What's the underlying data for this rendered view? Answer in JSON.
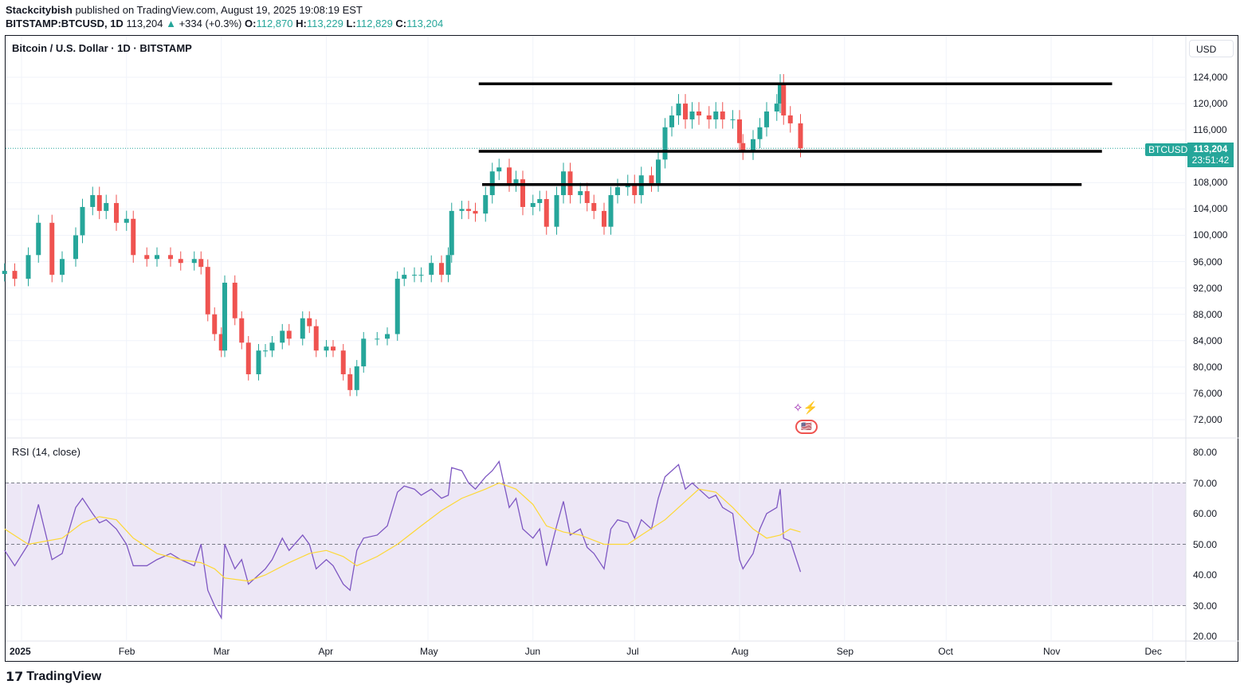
{
  "header": {
    "author": "Stackcitybish",
    "published": "published on TradingView.com, August 19, 2025 19:08:19 EST",
    "symbol": "BITSTAMP:BTCUSD, 1D",
    "last": "113,204",
    "change": "+334 (+0.3%)",
    "o_label": "O:",
    "o": "112,870",
    "h_label": "H:",
    "h": "113,229",
    "l_label": "L:",
    "l": "112,829",
    "c_label": "C:",
    "c": "113,204"
  },
  "pane_title": "Bitcoin / U.S. Dollar · 1D · BITSTAMP",
  "currency": "USD",
  "last_price_badge": {
    "symbol": "BTCUSD",
    "price": "113,204",
    "countdown": "23:51:42"
  },
  "rsi_title": "RSI (14, close)",
  "logo": "TradingView",
  "colors": {
    "up": "#26a69a",
    "down": "#ef5350",
    "rsi": "#7e57c2",
    "rsi_ma": "#fdd835",
    "band": "#ede7f6"
  },
  "chart_data": [
    {
      "type": "candlestick",
      "title": "Bitcoin / U.S. Dollar · 1D · BITSTAMP",
      "ylim": [
        70000,
        126000
      ],
      "yticks": [
        "124,000",
        "120,000",
        "116,000",
        "108,000",
        "104,000",
        "100,000",
        "96,000",
        "92,000",
        "88,000",
        "84,000",
        "80,000",
        "76,000",
        "72,000"
      ],
      "ytick_values": [
        124000,
        120000,
        116000,
        108000,
        104000,
        100000,
        96000,
        92000,
        88000,
        84000,
        80000,
        76000,
        72000
      ],
      "xticks": [
        "2025",
        "Feb",
        "Mar",
        "Apr",
        "May",
        "Jun",
        "Jul",
        "Aug",
        "Sep",
        "Oct",
        "Nov",
        "Dec"
      ],
      "xtick_dates": [
        "2025-01-01",
        "2025-02-01",
        "2025-03-01",
        "2025-04-01",
        "2025-05-01",
        "2025-06-01",
        "2025-07-01",
        "2025-08-01",
        "2025-09-01",
        "2025-10-01",
        "2025-11-01",
        "2025-12-01"
      ],
      "dates": [
        "2024-12-27",
        "2024-12-30",
        "2025-01-03",
        "2025-01-06",
        "2025-01-10",
        "2025-01-13",
        "2025-01-17",
        "2025-01-19",
        "2025-01-22",
        "2025-01-24",
        "2025-01-26",
        "2025-01-29",
        "2025-02-01",
        "2025-02-03",
        "2025-02-07",
        "2025-02-10",
        "2025-02-14",
        "2025-02-17",
        "2025-02-21",
        "2025-02-23",
        "2025-02-25",
        "2025-02-27",
        "2025-03-01",
        "2025-03-02",
        "2025-03-05",
        "2025-03-07",
        "2025-03-09",
        "2025-03-12",
        "2025-03-14",
        "2025-03-16",
        "2025-03-19",
        "2025-03-21",
        "2025-03-25",
        "2025-03-27",
        "2025-03-29",
        "2025-04-01",
        "2025-04-03",
        "2025-04-06",
        "2025-04-08",
        "2025-04-10",
        "2025-04-12",
        "2025-04-16",
        "2025-04-19",
        "2025-04-22",
        "2025-04-24",
        "2025-04-27",
        "2025-04-29",
        "2025-05-02",
        "2025-05-05",
        "2025-05-07",
        "2025-05-08",
        "2025-05-11",
        "2025-05-13",
        "2025-05-15",
        "2025-05-18",
        "2025-05-20",
        "2025-05-22",
        "2025-05-25",
        "2025-05-27",
        "2025-05-29",
        "2025-06-01",
        "2025-06-03",
        "2025-06-05",
        "2025-06-08",
        "2025-06-10",
        "2025-06-12",
        "2025-06-15",
        "2025-06-17",
        "2025-06-19",
        "2025-06-22",
        "2025-06-24",
        "2025-06-26",
        "2025-06-29",
        "2025-07-01",
        "2025-07-03",
        "2025-07-06",
        "2025-07-08",
        "2025-07-10",
        "2025-07-12",
        "2025-07-14",
        "2025-07-16",
        "2025-07-18",
        "2025-07-20",
        "2025-07-23",
        "2025-07-25",
        "2025-07-27",
        "2025-07-30",
        "2025-08-01",
        "2025-08-02",
        "2025-08-05",
        "2025-08-07",
        "2025-08-09",
        "2025-08-12",
        "2025-08-13",
        "2025-08-14",
        "2025-08-16",
        "2025-08-19"
      ],
      "close": [
        94600,
        93400,
        97000,
        101900,
        94000,
        96400,
        100000,
        104300,
        106100,
        103700,
        104900,
        101900,
        102500,
        97000,
        96400,
        97000,
        96400,
        95800,
        96400,
        95200,
        88000,
        85000,
        82500,
        92800,
        87400,
        83700,
        78900,
        82500,
        82500,
        83700,
        85500,
        84300,
        87400,
        86200,
        82500,
        83100,
        82500,
        78900,
        76500,
        80100,
        84300,
        84300,
        85000,
        93400,
        94000,
        94000,
        94000,
        95800,
        94000,
        97000,
        103700,
        104000,
        103700,
        103300,
        106100,
        109700,
        110300,
        107900,
        108500,
        104300,
        104900,
        105500,
        101300,
        106100,
        109700,
        106100,
        106700,
        104900,
        103700,
        101300,
        106100,
        107300,
        107900,
        106100,
        109100,
        107900,
        111500,
        116400,
        118200,
        120000,
        117600,
        118800,
        118200,
        117600,
        118800,
        117600,
        117600,
        114000,
        112800,
        114600,
        116400,
        118800,
        120000,
        123000,
        118200,
        117000,
        113204
      ],
      "drawn_levels": [
        {
          "price": 123000,
          "from": "2025-05-16",
          "to": "2025-11-19"
        },
        {
          "price": 112750,
          "from": "2025-05-16",
          "to": "2025-11-16"
        },
        {
          "price": 107700,
          "from": "2025-05-17",
          "to": "2025-11-10"
        }
      ]
    },
    {
      "type": "line",
      "title": "RSI (14, close)",
      "ylim": [
        20,
        80
      ],
      "yticks": [
        "80.00",
        "70.00",
        "60.00",
        "50.00",
        "40.00",
        "30.00",
        "20.00"
      ],
      "ytick_values": [
        80,
        70,
        60,
        50,
        40,
        30,
        20
      ],
      "bands": [
        30,
        70
      ],
      "midline": 50,
      "series": [
        {
          "values": [
            48,
            43,
            50,
            63,
            45,
            47,
            62,
            65,
            60,
            57,
            58,
            55,
            50,
            43,
            43,
            45,
            47,
            45,
            43,
            50,
            35,
            30,
            26,
            50,
            42,
            45,
            37,
            40,
            42,
            45,
            52,
            48,
            53,
            50,
            42,
            45,
            43,
            37,
            35,
            48,
            52,
            53,
            56,
            67,
            69,
            68,
            66,
            68,
            65,
            66,
            75,
            74,
            70,
            68,
            72,
            74,
            77,
            62,
            65,
            55,
            52,
            55,
            43,
            56,
            64,
            53,
            55,
            49,
            47,
            42,
            55,
            58,
            57,
            52,
            58,
            55,
            65,
            72,
            74,
            76,
            68,
            70,
            68,
            65,
            66,
            62,
            60,
            45,
            42,
            47,
            55,
            60,
            62,
            68,
            52,
            51,
            41
          ]
        },
        {
          "dates": [
            "2024-12-27",
            "2025-01-03",
            "2025-01-13",
            "2025-01-19",
            "2025-01-24",
            "2025-01-29",
            "2025-02-03",
            "2025-02-10",
            "2025-02-17",
            "2025-02-23",
            "2025-02-27",
            "2025-03-02",
            "2025-03-09",
            "2025-03-14",
            "2025-03-21",
            "2025-03-27",
            "2025-04-01",
            "2025-04-06",
            "2025-04-10",
            "2025-04-16",
            "2025-04-22",
            "2025-04-29",
            "2025-05-05",
            "2025-05-11",
            "2025-05-18",
            "2025-05-22",
            "2025-05-27",
            "2025-06-01",
            "2025-06-05",
            "2025-06-10",
            "2025-06-15",
            "2025-06-22",
            "2025-06-29",
            "2025-07-03",
            "2025-07-10",
            "2025-07-16",
            "2025-07-20",
            "2025-07-25",
            "2025-07-30",
            "2025-08-05",
            "2025-08-09",
            "2025-08-13",
            "2025-08-16",
            "2025-08-19"
          ],
          "values": [
            55,
            50,
            52,
            57,
            59,
            58,
            52,
            47,
            45,
            44,
            42,
            39,
            38,
            40,
            44,
            47,
            48,
            46,
            43,
            46,
            50,
            56,
            61,
            65,
            68,
            70,
            68,
            63,
            56,
            54,
            53,
            50,
            50,
            53,
            58,
            64,
            68,
            67,
            62,
            55,
            52,
            53,
            55,
            54
          ]
        }
      ]
    }
  ]
}
